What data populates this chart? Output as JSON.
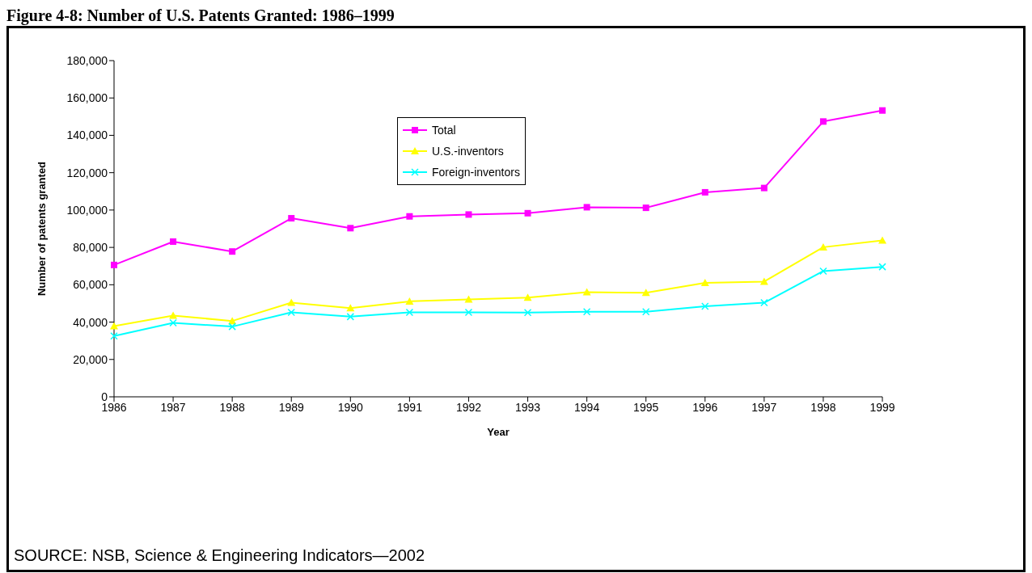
{
  "chart_data": {
    "type": "line",
    "title": "Figure 4-8: Number of U.S. Patents Granted: 1986–1999",
    "xlabel": "Year",
    "ylabel": "Number of patents granted",
    "categories": [
      "1986",
      "1987",
      "1988",
      "1989",
      "1990",
      "1991",
      "1992",
      "1993",
      "1994",
      "1995",
      "1996",
      "1997",
      "1998",
      "1999"
    ],
    "series": [
      {
        "name": "Total",
        "color": "#ff00ff",
        "marker": "square",
        "values": [
          70600,
          83100,
          77800,
          95600,
          90300,
          96600,
          97600,
          98300,
          101500,
          101200,
          109500,
          111800,
          147400,
          153300
        ]
      },
      {
        "name": "U.S.-inventors",
        "color": "#ffff00",
        "marker": "triangle",
        "values": [
          37900,
          43500,
          40600,
          50400,
          47500,
          51100,
          52100,
          53100,
          56000,
          55700,
          61000,
          61700,
          80100,
          83700
        ]
      },
      {
        "name": "Foreign-inventors",
        "color": "#00ffff",
        "marker": "cross",
        "values": [
          32600,
          39600,
          37600,
          45200,
          42900,
          45200,
          45200,
          45100,
          45500,
          45500,
          48500,
          50400,
          67300,
          69600
        ]
      }
    ],
    "ylim": [
      0,
      180000
    ],
    "yticks": [
      0,
      {
        "value": 20000,
        "label": "20,000"
      },
      {
        "value": 40000,
        "label": "40,000"
      },
      {
        "value": 60000,
        "label": "60,000"
      },
      {
        "value": 80000,
        "label": "80,000"
      },
      {
        "value": 100000,
        "label": "100,000"
      },
      {
        "value": 120000,
        "label": "120,000"
      },
      {
        "value": 140000,
        "label": "140,000"
      },
      {
        "value": 160000,
        "label": "160,000"
      },
      {
        "value": 180000,
        "label": "180,000"
      }
    ],
    "grid": false,
    "legend": "top",
    "line_style": "solid",
    "annotations": [
      "SOURCE: NSB, Science & Engineering Indicators—2002"
    ]
  }
}
